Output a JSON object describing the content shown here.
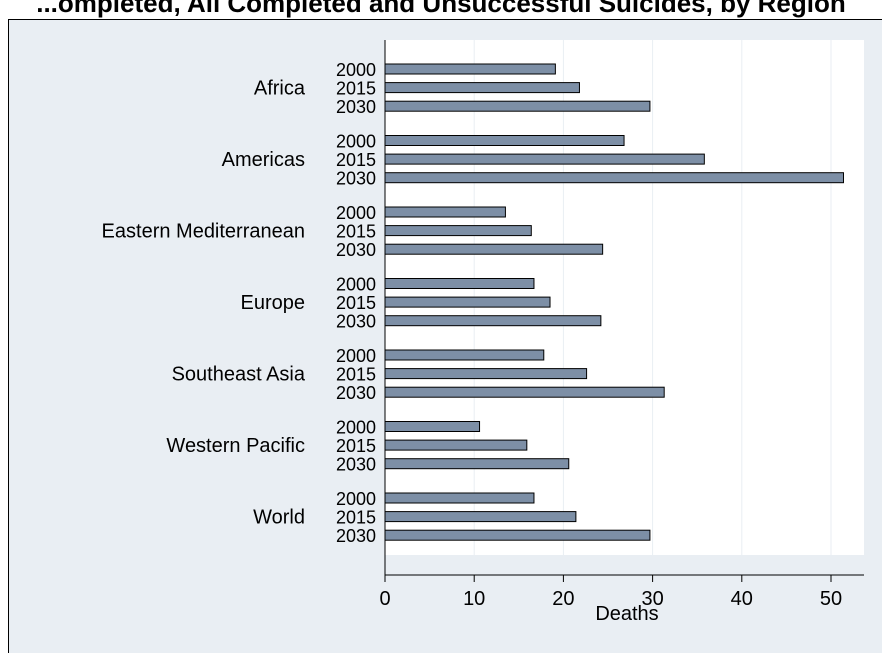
{
  "title": "...ompleted, All Completed and Unsuccessful Suicides, by Region",
  "chart_data": {
    "type": "bar",
    "orientation": "horizontal",
    "title": "...ompleted, All Completed and Unsuccessful Suicides, by Region",
    "xlabel": "Deaths",
    "ylabel": "",
    "xlim": [
      0,
      54
    ],
    "xticks": [
      0,
      10,
      20,
      30,
      40,
      50
    ],
    "grid": true,
    "legend": "none",
    "bar_color": "#7d8fa6",
    "plot_background": "#ffffff",
    "frame_background": "#e9eef3",
    "groups": [
      {
        "label": "Africa",
        "items": [
          {
            "year": "2000",
            "value": 19.1
          },
          {
            "year": "2015",
            "value": 21.8
          },
          {
            "year": "2030",
            "value": 29.7
          }
        ]
      },
      {
        "label": "Americas",
        "items": [
          {
            "year": "2000",
            "value": 26.8
          },
          {
            "year": "2015",
            "value": 35.8
          },
          {
            "year": "2030",
            "value": 51.4
          }
        ]
      },
      {
        "label": "Eastern Mediterranean",
        "items": [
          {
            "year": "2000",
            "value": 13.5
          },
          {
            "year": "2015",
            "value": 16.4
          },
          {
            "year": "2030",
            "value": 24.4
          }
        ]
      },
      {
        "label": "Europe",
        "items": [
          {
            "year": "2000",
            "value": 16.7
          },
          {
            "year": "2015",
            "value": 18.5
          },
          {
            "year": "2030",
            "value": 24.2
          }
        ]
      },
      {
        "label": "Southeast Asia",
        "items": [
          {
            "year": "2000",
            "value": 17.8
          },
          {
            "year": "2015",
            "value": 22.6
          },
          {
            "year": "2030",
            "value": 31.3
          }
        ]
      },
      {
        "label": "Western Pacific",
        "items": [
          {
            "year": "2000",
            "value": 10.6
          },
          {
            "year": "2015",
            "value": 15.9
          },
          {
            "year": "2030",
            "value": 20.6
          }
        ]
      },
      {
        "label": "World",
        "items": [
          {
            "year": "2000",
            "value": 16.7
          },
          {
            "year": "2015",
            "value": 21.4
          },
          {
            "year": "2030",
            "value": 29.7
          }
        ]
      }
    ]
  }
}
